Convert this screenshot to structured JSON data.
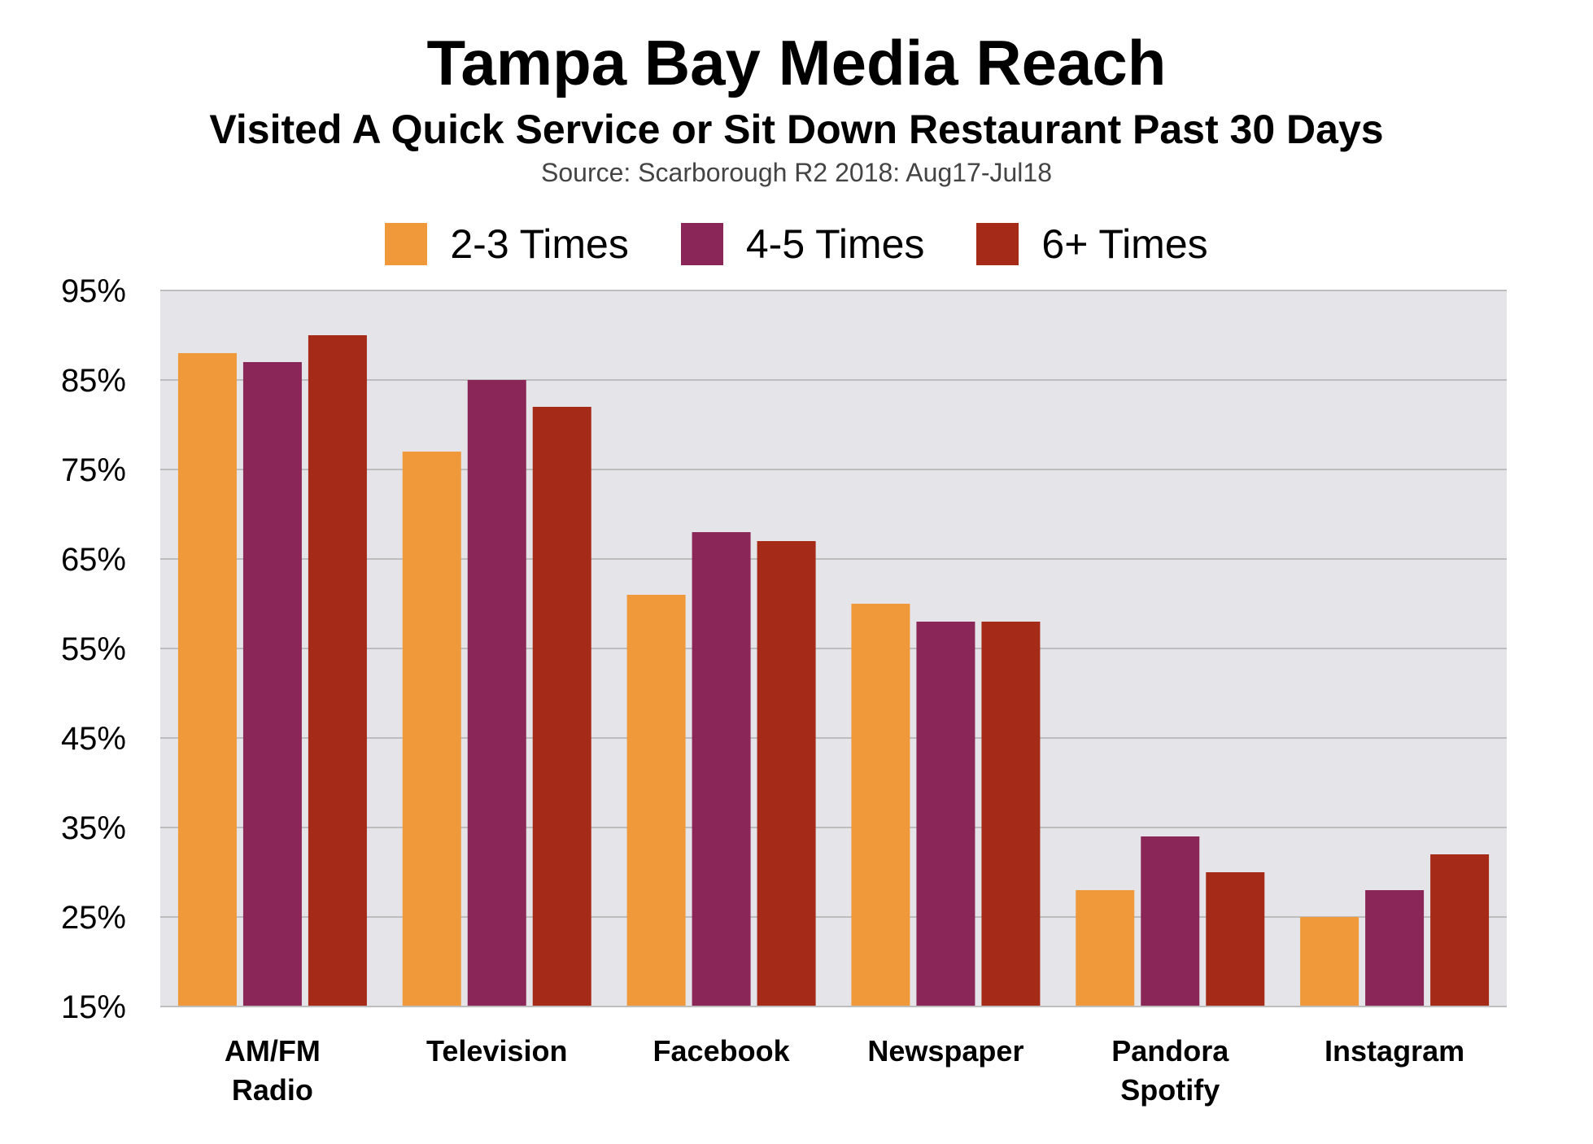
{
  "chart_data": {
    "type": "bar",
    "title": "Tampa Bay Media Reach",
    "subtitle": "Visited A Quick Service or Sit Down Restaurant Past 30 Days",
    "source": "Source: Scarborough R2 2018: Aug17-Jul18",
    "categories": [
      [
        "AM/FM",
        "Radio"
      ],
      [
        "Television"
      ],
      [
        "Facebook"
      ],
      [
        "Newspaper"
      ],
      [
        "Pandora",
        "Spotify"
      ],
      [
        "Instagram"
      ]
    ],
    "series": [
      {
        "name": "2-3 Times",
        "color": "#F0993A",
        "values": [
          88,
          77,
          61,
          60,
          28,
          25
        ]
      },
      {
        "name": "4-5 Times",
        "color": "#8B2659",
        "values": [
          87,
          85,
          68,
          58,
          34,
          28
        ]
      },
      {
        "name": "6+ Times",
        "color": "#A52B18",
        "values": [
          90,
          82,
          67,
          58,
          30,
          32
        ]
      }
    ],
    "ylim": [
      15,
      95
    ],
    "yticks": [
      95,
      85,
      75,
      65,
      55,
      45,
      35,
      25,
      15
    ],
    "ytick_suffix": "%",
    "xlabel": "",
    "ylabel": "",
    "grid": true,
    "legend_position": "top-center",
    "plot_background": "#E5E4E8",
    "grid_color": "#BDBDBD"
  }
}
